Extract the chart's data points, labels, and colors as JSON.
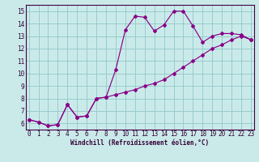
{
  "xlabel": "Windchill (Refroidissement éolien,°C)",
  "bg_color": "#caeaea",
  "line_color": "#880088",
  "grid_color": "#99cccc",
  "x_ticks": [
    0,
    1,
    2,
    3,
    4,
    5,
    6,
    7,
    8,
    9,
    10,
    11,
    12,
    13,
    14,
    15,
    16,
    17,
    18,
    19,
    20,
    21,
    22,
    23
  ],
  "y_ticks": [
    6,
    7,
    8,
    9,
    10,
    11,
    12,
    13,
    14,
    15
  ],
  "xlim": [
    -0.3,
    23.3
  ],
  "ylim": [
    5.5,
    15.5
  ],
  "series1_x": [
    0,
    1,
    2,
    3,
    4,
    5,
    6,
    7,
    8,
    9,
    10,
    11,
    12,
    13,
    14,
    15,
    16,
    17,
    18,
    19,
    20,
    21,
    22,
    23
  ],
  "series1_y": [
    6.3,
    6.1,
    5.8,
    5.9,
    7.5,
    6.5,
    6.6,
    8.0,
    8.1,
    8.3,
    8.5,
    8.7,
    9.0,
    9.2,
    9.5,
    10.0,
    10.5,
    11.0,
    11.5,
    12.0,
    12.3,
    12.7,
    13.0,
    12.7
  ],
  "series2_x": [
    0,
    1,
    2,
    3,
    4,
    5,
    6,
    7,
    8,
    9,
    10,
    11,
    12,
    13,
    14,
    15,
    16,
    17,
    18,
    19,
    20,
    21,
    22,
    23
  ],
  "series2_y": [
    6.3,
    6.1,
    5.8,
    5.9,
    7.5,
    6.5,
    6.6,
    8.0,
    8.1,
    10.3,
    13.5,
    14.6,
    14.5,
    13.4,
    13.9,
    15.0,
    15.0,
    13.8,
    12.5,
    13.0,
    13.2,
    13.2,
    13.1,
    12.7
  ],
  "tick_fontsize": 5.5,
  "xlabel_fontsize": 5.5
}
